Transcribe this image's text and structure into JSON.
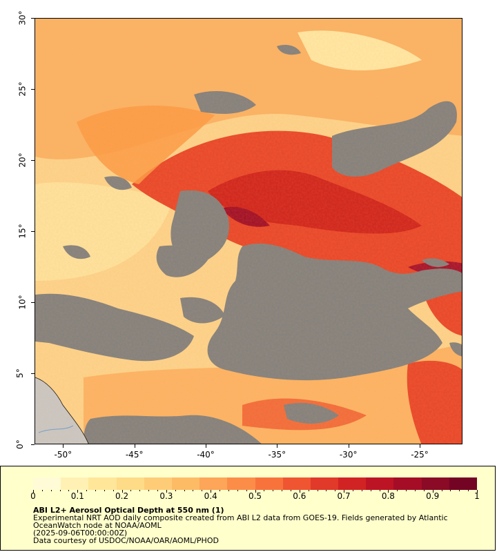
{
  "map": {
    "x_ticks": [
      "-50°",
      "-45°",
      "-40°",
      "-35°",
      "-30°",
      "-25°"
    ],
    "y_ticks": [
      "0°",
      "5°",
      "10°",
      "15°",
      "20°",
      "25°",
      "30°"
    ],
    "lon_range": [
      -52,
      -22
    ],
    "lat_range": [
      0,
      30
    ],
    "colors": {
      "no_data": "#808080",
      "land": "#c8c8c8",
      "low_aod": "#ffe9a6",
      "mid_aod": "#fb9a45",
      "high_aod": "#e1271a",
      "very_high_aod": "#a50f2c"
    }
  },
  "legend": {
    "ticks": [
      "0",
      "0.1",
      "0.2",
      "0.3",
      "0.4",
      "0.5",
      "0.6",
      "0.7",
      "0.8",
      "0.9",
      "1"
    ],
    "colors": [
      "#fffbd6",
      "#fff1b3",
      "#ffe699",
      "#fedb87",
      "#fecc77",
      "#fdbb66",
      "#fda558",
      "#fc8d49",
      "#f8733c",
      "#f05532",
      "#e1392a",
      "#d22324",
      "#bd1425",
      "#a50d27",
      "#8b0a26",
      "#730424"
    ],
    "title": "ABI L2+ Aerosol Optical Depth at 550 nm (1)",
    "line1": "Experimental NRT AOD daily composite created from ABI L2 data from GOES-19. Fields generated by Atlantic",
    "line2": "OceanWatch node at NOAA/AOML",
    "line3": "(2025-09-06T00:00:00Z)",
    "line4": "Data courtesy of USDOC/NOAA/OAR/AOML/PHOD"
  }
}
